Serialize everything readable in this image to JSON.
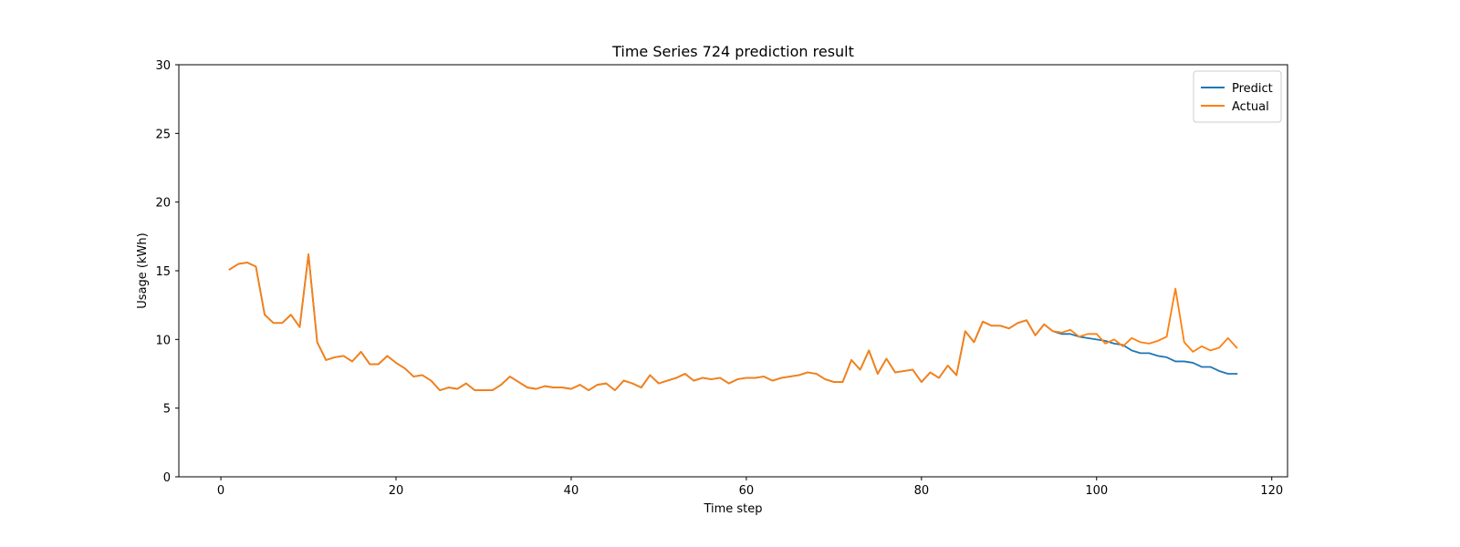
{
  "chart_data": {
    "type": "line",
    "title": "Time Series 724 prediction result",
    "xlabel": "Time step",
    "ylabel": "Usage (kWh)",
    "xlim": [
      -4.8,
      121.8
    ],
    "ylim": [
      0,
      30
    ],
    "xticks": [
      0,
      20,
      40,
      60,
      80,
      100,
      120
    ],
    "yticks": [
      0,
      5,
      10,
      15,
      20,
      25,
      30
    ],
    "grid": false,
    "legend_position": "top-right",
    "x": [
      1,
      2,
      3,
      4,
      5,
      6,
      7,
      8,
      9,
      10,
      11,
      12,
      13,
      14,
      15,
      16,
      17,
      18,
      19,
      20,
      21,
      22,
      23,
      24,
      25,
      26,
      27,
      28,
      29,
      30,
      31,
      32,
      33,
      34,
      35,
      36,
      37,
      38,
      39,
      40,
      41,
      42,
      43,
      44,
      45,
      46,
      47,
      48,
      49,
      50,
      51,
      52,
      53,
      54,
      55,
      56,
      57,
      58,
      59,
      60,
      61,
      62,
      63,
      64,
      65,
      66,
      67,
      68,
      69,
      70,
      71,
      72,
      73,
      74,
      75,
      76,
      77,
      78,
      79,
      80,
      81,
      82,
      83,
      84,
      85,
      86,
      87,
      88,
      89,
      90,
      91,
      92,
      93,
      94,
      95,
      96,
      97,
      98,
      99,
      100,
      101,
      102,
      103,
      104,
      105,
      106,
      107,
      108,
      109,
      110,
      111,
      112,
      113,
      114,
      115,
      116
    ],
    "series": [
      {
        "name": "Predict",
        "color": "#1f77b4",
        "values": [
          15.1,
          15.5,
          15.6,
          15.3,
          11.8,
          11.2,
          11.2,
          11.8,
          10.9,
          16.2,
          9.8,
          8.5,
          8.7,
          8.8,
          8.4,
          9.1,
          8.2,
          8.2,
          8.8,
          8.3,
          7.9,
          7.3,
          7.4,
          7.0,
          6.3,
          6.5,
          6.4,
          6.8,
          6.3,
          6.3,
          6.3,
          6.7,
          7.3,
          6.9,
          6.5,
          6.4,
          6.6,
          6.5,
          6.5,
          6.4,
          6.7,
          6.3,
          6.7,
          6.8,
          6.3,
          7.0,
          6.8,
          6.5,
          7.4,
          6.8,
          7.0,
          7.2,
          7.5,
          7.0,
          7.2,
          7.1,
          7.2,
          6.8,
          7.1,
          7.2,
          7.2,
          7.3,
          7.0,
          7.2,
          7.3,
          7.4,
          7.6,
          7.5,
          7.1,
          6.9,
          6.9,
          8.5,
          7.8,
          9.2,
          7.5,
          8.6,
          7.6,
          7.7,
          7.8,
          6.9,
          7.6,
          7.2,
          8.1,
          7.4,
          10.6,
          9.8,
          11.3,
          11.0,
          11.0,
          10.8,
          11.2,
          11.4,
          10.3,
          11.1,
          10.6,
          10.4,
          10.4,
          10.2,
          10.1,
          10.0,
          9.9,
          9.7,
          9.6,
          9.2,
          9.0,
          9.0,
          8.8,
          8.7,
          8.4,
          8.4,
          8.3,
          8.0,
          8.0,
          7.7,
          7.5,
          7.5
        ]
      },
      {
        "name": "Actual",
        "color": "#ff7f0e",
        "values": [
          15.1,
          15.5,
          15.6,
          15.3,
          11.8,
          11.2,
          11.2,
          11.8,
          10.9,
          16.2,
          9.8,
          8.5,
          8.7,
          8.8,
          8.4,
          9.1,
          8.2,
          8.2,
          8.8,
          8.3,
          7.9,
          7.3,
          7.4,
          7.0,
          6.3,
          6.5,
          6.4,
          6.8,
          6.3,
          6.3,
          6.3,
          6.7,
          7.3,
          6.9,
          6.5,
          6.4,
          6.6,
          6.5,
          6.5,
          6.4,
          6.7,
          6.3,
          6.7,
          6.8,
          6.3,
          7.0,
          6.8,
          6.5,
          7.4,
          6.8,
          7.0,
          7.2,
          7.5,
          7.0,
          7.2,
          7.1,
          7.2,
          6.8,
          7.1,
          7.2,
          7.2,
          7.3,
          7.0,
          7.2,
          7.3,
          7.4,
          7.6,
          7.5,
          7.1,
          6.9,
          6.9,
          8.5,
          7.8,
          9.2,
          7.5,
          8.6,
          7.6,
          7.7,
          7.8,
          6.9,
          7.6,
          7.2,
          8.1,
          7.4,
          10.6,
          9.8,
          11.3,
          11.0,
          11.0,
          10.8,
          11.2,
          11.4,
          10.3,
          11.1,
          10.6,
          10.5,
          10.7,
          10.2,
          10.4,
          10.4,
          9.7,
          10.0,
          9.5,
          10.1,
          9.8,
          9.7,
          9.9,
          10.2,
          13.7,
          9.8,
          9.1,
          9.5,
          9.2,
          9.4,
          10.1,
          9.4
        ]
      }
    ]
  }
}
